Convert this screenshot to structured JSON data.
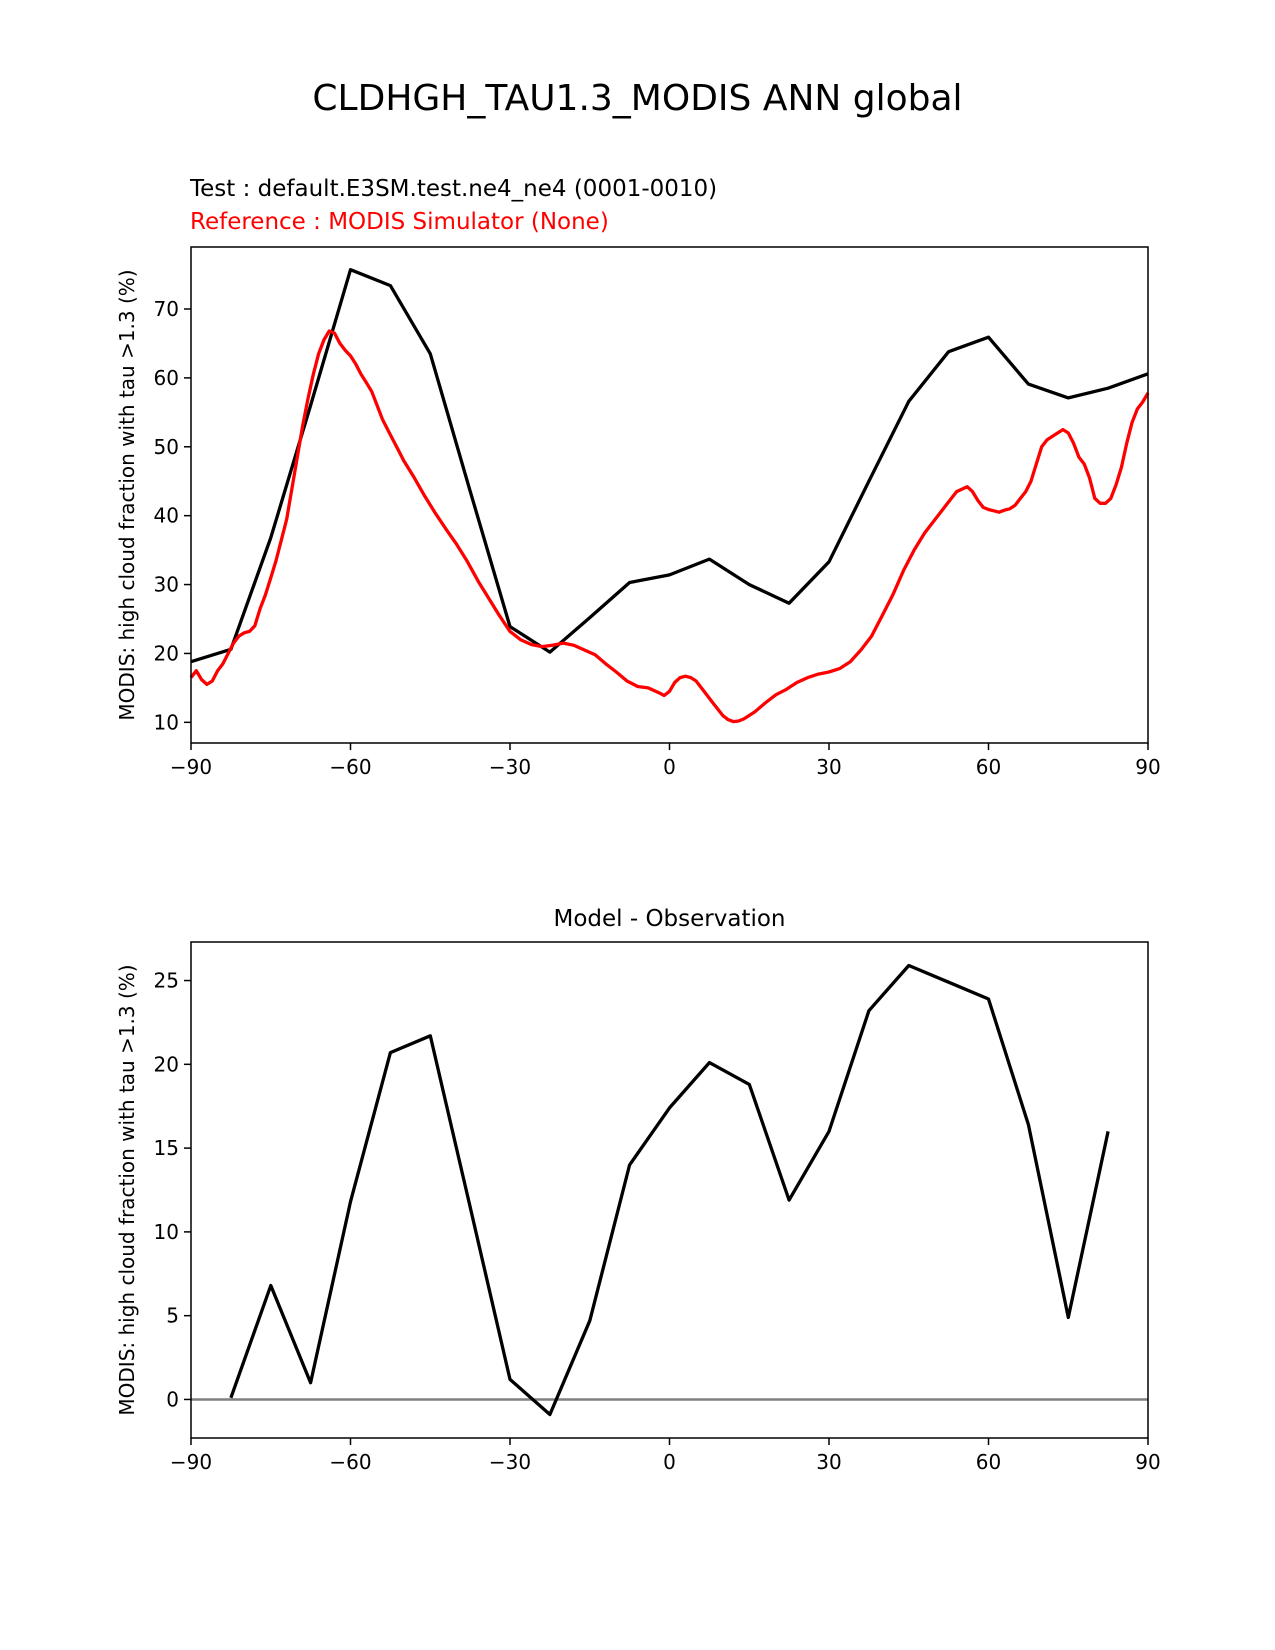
{
  "figure_title": "CLDHGH_TAU1.3_MODIS ANN global",
  "colors": {
    "test": "#000000",
    "reference": "#ff0000",
    "zero_line": "#808080"
  },
  "chart_data": [
    {
      "type": "line",
      "test_label": "Test : default.E3SM.test.ne4_ne4 (0001-0010)",
      "reference_label": "Reference : MODIS Simulator (None)",
      "ylabel": "MODIS: high cloud fraction with tau >1.3 (%)",
      "xlim": [
        -90,
        90
      ],
      "ylim": [
        7,
        79
      ],
      "xticks": [
        -90,
        -60,
        -30,
        0,
        30,
        60,
        90
      ],
      "xtick_labels": [
        "−90",
        "−60",
        "−30",
        "0",
        "30",
        "60",
        "90"
      ],
      "yticks": [
        10,
        20,
        30,
        40,
        50,
        60,
        70
      ],
      "grid": false,
      "series": [
        {
          "role": "test",
          "color": "#000000",
          "x": [
            -90,
            -82.5,
            -75,
            -67.5,
            -60,
            -52.5,
            -45,
            -37.5,
            -30,
            -22.5,
            -15,
            -7.5,
            0,
            7.5,
            15,
            22.5,
            30,
            37.5,
            45,
            52.5,
            60,
            67.5,
            75,
            82.5,
            90
          ],
          "y": [
            18.8,
            20.6,
            36.8,
            56.0,
            75.7,
            73.4,
            63.5,
            43.6,
            23.9,
            20.2,
            25.2,
            30.3,
            31.4,
            33.7,
            30.0,
            27.3,
            33.3,
            45.0,
            56.6,
            63.8,
            65.9,
            59.1,
            57.1,
            58.5,
            60.6
          ]
        },
        {
          "role": "reference",
          "color": "#ff0000",
          "x": [
            -90,
            -89,
            -88,
            -87,
            -86,
            -85,
            -84,
            -83,
            -82,
            -81,
            -80,
            -79,
            -78,
            -77,
            -76,
            -75,
            -74,
            -73,
            -72,
            -71,
            -70,
            -69,
            -68,
            -67,
            -66,
            -65,
            -64,
            -63,
            -62,
            -61,
            -60,
            -59,
            -58,
            -57,
            -56,
            -55,
            -54,
            -53,
            -52,
            -51,
            -50,
            -48,
            -46,
            -44,
            -42,
            -40,
            -38,
            -36,
            -34,
            -32,
            -30,
            -28,
            -26,
            -24,
            -22,
            -20,
            -18,
            -16,
            -14,
            -12,
            -10,
            -8,
            -6,
            -4,
            -2,
            -1,
            0,
            1,
            2,
            3,
            4,
            5,
            6,
            7,
            8,
            9,
            10,
            11,
            12,
            13,
            14,
            15,
            16,
            18,
            20,
            22,
            24,
            26,
            28,
            30,
            32,
            34,
            36,
            38,
            40,
            42,
            44,
            46,
            48,
            50,
            52,
            54,
            56,
            57,
            58,
            59,
            60,
            61,
            62,
            63,
            64,
            65,
            66,
            67,
            68,
            69,
            70,
            71,
            72,
            73,
            74,
            75,
            76,
            77,
            78,
            79,
            80,
            81,
            82,
            83,
            84,
            85,
            86,
            87,
            88,
            89,
            90
          ],
          "y": [
            16.5,
            17.5,
            16.2,
            15.5,
            16.0,
            17.5,
            18.5,
            20.0,
            21.5,
            22.5,
            23.0,
            23.2,
            24.0,
            26.5,
            28.5,
            31.0,
            33.5,
            36.5,
            39.5,
            44.0,
            48.5,
            53.0,
            57.0,
            60.5,
            63.5,
            65.5,
            66.8,
            66.5,
            65.0,
            64.0,
            63.2,
            62.0,
            60.5,
            59.3,
            58.0,
            56.0,
            54.0,
            52.5,
            51.0,
            49.5,
            48.0,
            45.5,
            42.8,
            40.3,
            38.0,
            35.8,
            33.3,
            30.5,
            28.0,
            25.5,
            23.2,
            22.0,
            21.3,
            21.0,
            21.2,
            21.5,
            21.2,
            20.5,
            19.8,
            18.5,
            17.3,
            16.0,
            15.2,
            15.0,
            14.3,
            13.9,
            14.5,
            15.8,
            16.5,
            16.7,
            16.5,
            16.0,
            15.0,
            14.0,
            13.0,
            12.0,
            11.0,
            10.4,
            10.1,
            10.2,
            10.5,
            11.0,
            11.5,
            12.8,
            14.0,
            14.8,
            15.8,
            16.5,
            17.0,
            17.3,
            17.8,
            18.8,
            20.5,
            22.5,
            25.5,
            28.5,
            32.0,
            35.0,
            37.5,
            39.5,
            41.5,
            43.5,
            44.2,
            43.5,
            42.2,
            41.2,
            40.9,
            40.7,
            40.5,
            40.8,
            41.0,
            41.5,
            42.5,
            43.5,
            45.0,
            47.5,
            50.0,
            51.0,
            51.5,
            52.0,
            52.5,
            52.0,
            50.5,
            48.5,
            47.5,
            45.5,
            42.5,
            41.8,
            41.8,
            42.5,
            44.5,
            47.0,
            50.5,
            53.5,
            55.5,
            56.5,
            57.8
          ]
        }
      ]
    },
    {
      "type": "line",
      "title": "Model - Observation",
      "ylabel": "MODIS: high cloud fraction with tau >1.3 (%)",
      "xlim": [
        -90,
        90
      ],
      "ylim": [
        -2.3,
        27.3
      ],
      "xticks": [
        -90,
        -60,
        -30,
        0,
        30,
        60,
        90
      ],
      "xtick_labels": [
        "−90",
        "−60",
        "−30",
        "0",
        "30",
        "60",
        "90"
      ],
      "yticks": [
        0,
        5,
        10,
        15,
        20,
        25
      ],
      "grid": false,
      "zero_line": true,
      "series": [
        {
          "role": "difference",
          "color": "#000000",
          "x": [
            -82.5,
            -75,
            -67.5,
            -60,
            -52.5,
            -45,
            -37.5,
            -30,
            -22.5,
            -15,
            -7.5,
            0,
            7.5,
            15,
            22.5,
            30,
            37.5,
            45,
            52.5,
            60,
            67.5,
            75,
            82.5
          ],
          "y": [
            0.1,
            6.8,
            1.0,
            11.8,
            20.7,
            21.7,
            11.5,
            1.2,
            -0.9,
            4.7,
            14.0,
            17.4,
            20.1,
            18.8,
            11.9,
            16.0,
            23.2,
            25.9,
            24.9,
            23.9,
            16.4,
            4.9,
            16.0
          ]
        }
      ]
    }
  ]
}
